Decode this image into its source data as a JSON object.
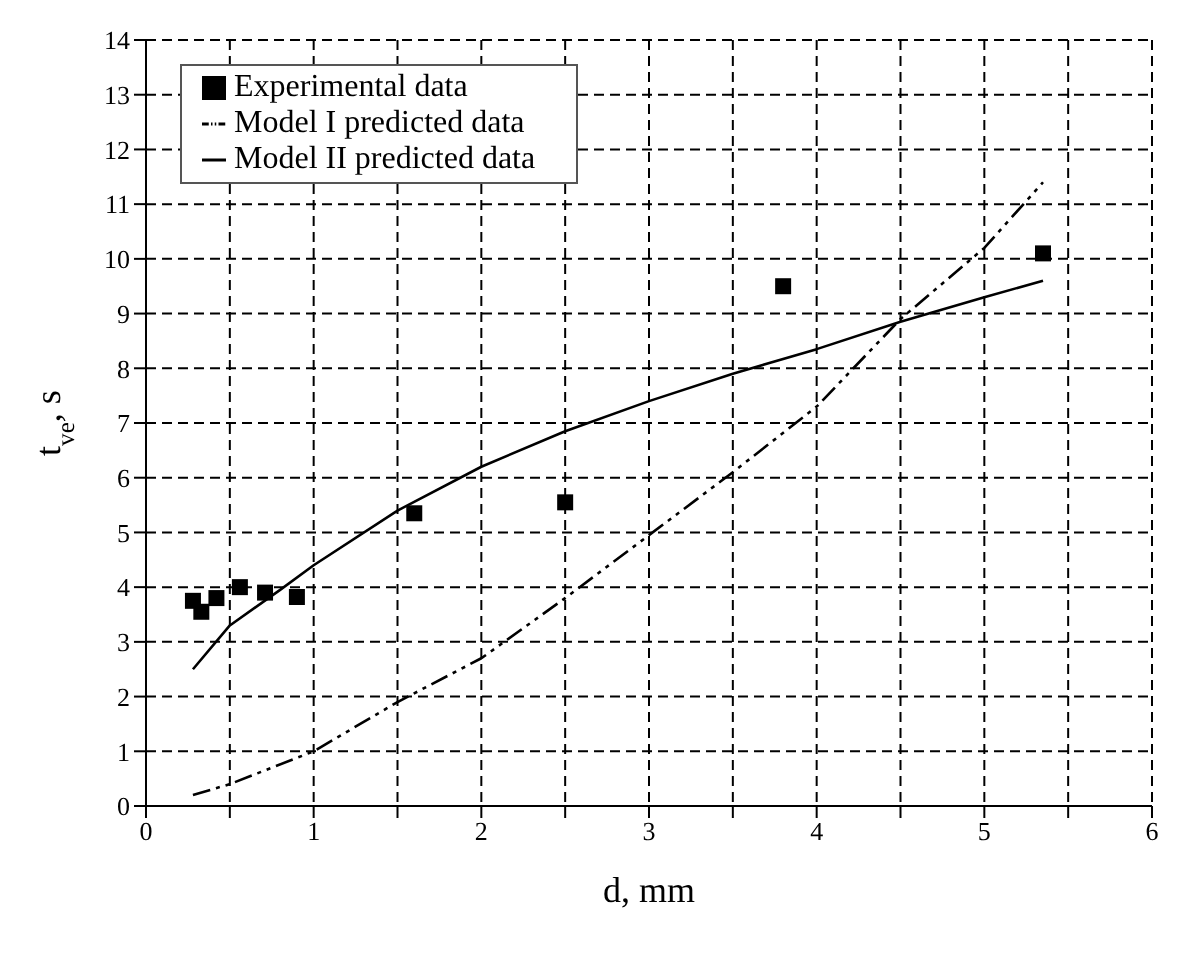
{
  "chart_data": {
    "type": "scatter",
    "xlabel": "d, mm",
    "ylabel": "t$_{ve}$, s",
    "xlim": [
      0,
      6
    ],
    "xticks": [
      0,
      {
        "value": 0.5,
        "label": null
      },
      1,
      {
        "value": 1.5,
        "label": null
      },
      2,
      {
        "value": 2.5,
        "label": null
      },
      3,
      {
        "value": 3.5,
        "label": null
      },
      4,
      {
        "value": 4.5,
        "label": null
      },
      5,
      {
        "value": 5.5,
        "label": null
      },
      6
    ],
    "ylim": [
      0,
      14
    ],
    "yticks": [
      0,
      1,
      2,
      3,
      4,
      5,
      6,
      7,
      8,
      9,
      10,
      11,
      12,
      13,
      14
    ],
    "grid": true,
    "legend": "top left",
    "series": [
      {
        "name": "Experimental data",
        "type": "scatter",
        "marker": "square",
        "color": "#000000",
        "x": [
          0.28,
          0.33,
          0.42,
          0.56,
          0.71,
          0.9,
          1.6,
          2.5,
          3.8,
          5.35
        ],
        "values": [
          3.75,
          3.55,
          3.8,
          4.0,
          3.9,
          3.82,
          5.35,
          5.55,
          9.5,
          10.1
        ]
      },
      {
        "name": "Model I predicted data",
        "type": "line",
        "marker": "none",
        "line_style": "dashed",
        "color": "#000000",
        "x": [
          0.28,
          0.5,
          1,
          1.5,
          2,
          2.5,
          3,
          3.5,
          4,
          4.5,
          5,
          5.35
        ],
        "values": [
          0.2,
          0.4,
          1.0,
          1.9,
          2.7,
          3.8,
          4.95,
          6.1,
          7.3,
          8.9,
          10.2,
          11.4
        ]
      },
      {
        "name": "Model II predicted data",
        "type": "line",
        "marker": "none",
        "line_style": "solid",
        "color": "#000000",
        "x": [
          0.28,
          0.5,
          0.8,
          1,
          1.5,
          2,
          2.5,
          3,
          3.5,
          4,
          4.5,
          5,
          5.35
        ],
        "values": [
          2.5,
          3.3,
          3.95,
          4.4,
          5.4,
          6.2,
          6.85,
          7.4,
          7.9,
          8.35,
          8.85,
          9.3,
          9.6
        ]
      }
    ]
  }
}
